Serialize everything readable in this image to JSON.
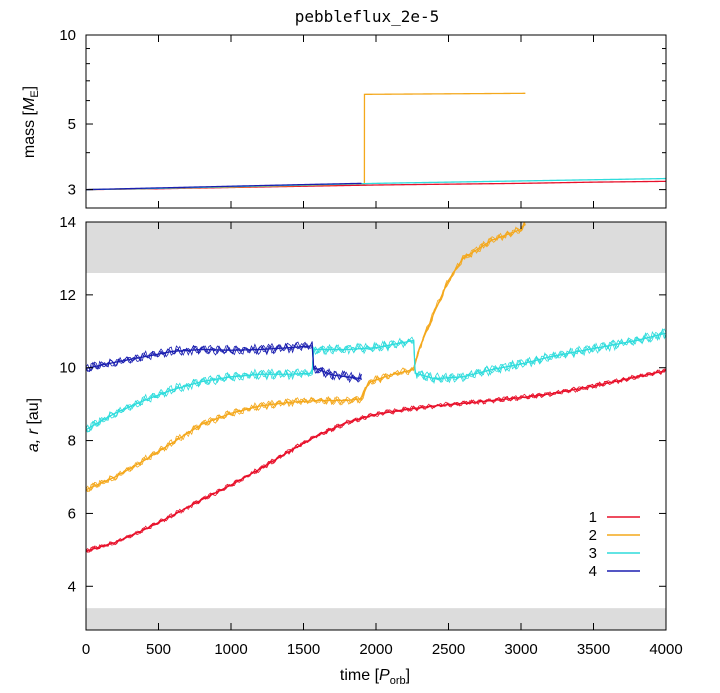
{
  "chart_data": [
    {
      "type": "line",
      "panel": "top",
      "title": "pebbleflux_2e-5",
      "ylabel": "mass [M_E]",
      "ylabel_parts": {
        "pre": "mass [",
        "main": "M",
        "sub": "E",
        "post": "]"
      },
      "xlim": [
        0,
        4000
      ],
      "ylim": [
        2.6,
        10
      ],
      "yscale": "log",
      "yticks": [
        3,
        5,
        10
      ],
      "ytick_labels": [
        "3",
        "5",
        "10"
      ],
      "grid": false,
      "series": [
        {
          "name": "1",
          "color": "#e8102a",
          "points": [
            [
              0,
              3.0
            ],
            [
              500,
              3.02
            ],
            [
              1000,
              3.05
            ],
            [
              1500,
              3.08
            ],
            [
              2000,
              3.11
            ],
            [
              2500,
              3.13
            ],
            [
              3000,
              3.15
            ],
            [
              3500,
              3.18
            ],
            [
              4000,
              3.2
            ]
          ]
        },
        {
          "name": "2",
          "color": "#f4a81c",
          "points": [
            [
              0,
              3.0
            ],
            [
              500,
              3.03
            ],
            [
              1000,
              3.06
            ],
            [
              1500,
              3.1
            ],
            [
              1920,
              3.14
            ],
            [
              1920.5,
              6.3
            ],
            [
              3030,
              6.35
            ]
          ]
        },
        {
          "name": "3",
          "color": "#2edcdc",
          "points": [
            [
              0,
              3.0
            ],
            [
              500,
              3.03
            ],
            [
              1000,
              3.07
            ],
            [
              1500,
              3.11
            ],
            [
              2000,
              3.15
            ],
            [
              2500,
              3.18
            ],
            [
              3000,
              3.21
            ],
            [
              3500,
              3.24
            ],
            [
              4000,
              3.27
            ]
          ]
        },
        {
          "name": "4",
          "color": "#1b1fb0",
          "points": [
            [
              0,
              3.0
            ],
            [
              500,
              3.04
            ],
            [
              1000,
              3.08
            ],
            [
              1500,
              3.12
            ],
            [
              1900,
              3.15
            ]
          ]
        }
      ]
    },
    {
      "type": "line",
      "panel": "bottom",
      "xlabel": "time [P_orb]",
      "xlabel_parts": {
        "pre": "time [",
        "main": "P",
        "sub": "orb",
        "post": "]"
      },
      "ylabel": "a, r [au]",
      "ylabel_parts": {
        "main": "a, r",
        "post": " [au]"
      },
      "xlim": [
        0,
        4000
      ],
      "ylim": [
        2.8,
        14
      ],
      "xticks": [
        0,
        500,
        1000,
        1500,
        2000,
        2500,
        3000,
        3500,
        4000
      ],
      "yticks": [
        4,
        6,
        8,
        10,
        12,
        14
      ],
      "grid": false,
      "shaded_bands": [
        {
          "y0": 12.6,
          "y1": 14.0,
          "color": "#dcdcdc"
        },
        {
          "y0": 2.8,
          "y1": 3.4,
          "color": "#dcdcdc"
        }
      ],
      "legend_position": "bottom-right",
      "series": [
        {
          "name": "1",
          "color": "#e8102a",
          "band": 0.08,
          "points": [
            [
              0,
              4.97
            ],
            [
              200,
              5.2
            ],
            [
              400,
              5.55
            ],
            [
              600,
              5.95
            ],
            [
              800,
              6.38
            ],
            [
              1000,
              6.78
            ],
            [
              1200,
              7.22
            ],
            [
              1400,
              7.7
            ],
            [
              1600,
              8.15
            ],
            [
              1800,
              8.5
            ],
            [
              2000,
              8.72
            ],
            [
              2200,
              8.85
            ],
            [
              2400,
              8.95
            ],
            [
              2600,
              9.02
            ],
            [
              2800,
              9.1
            ],
            [
              3000,
              9.18
            ],
            [
              3200,
              9.28
            ],
            [
              3400,
              9.42
            ],
            [
              3600,
              9.58
            ],
            [
              3800,
              9.75
            ],
            [
              4000,
              9.92
            ]
          ]
        },
        {
          "name": "2",
          "color": "#f4a81c",
          "band": 0.12,
          "points": [
            [
              0,
              6.65
            ],
            [
              200,
              7.0
            ],
            [
              400,
              7.45
            ],
            [
              600,
              7.95
            ],
            [
              800,
              8.45
            ],
            [
              1000,
              8.75
            ],
            [
              1200,
              8.95
            ],
            [
              1400,
              9.05
            ],
            [
              1600,
              9.1
            ],
            [
              1800,
              9.1
            ],
            [
              1900,
              9.15
            ],
            [
              1950,
              9.6
            ],
            [
              2100,
              9.8
            ],
            [
              2260,
              9.95
            ],
            [
              2300,
              10.55
            ],
            [
              2400,
              11.5
            ],
            [
              2500,
              12.4
            ],
            [
              2600,
              13.0
            ],
            [
              2800,
              13.5
            ],
            [
              3000,
              13.8
            ],
            [
              3030,
              13.95
            ]
          ]
        },
        {
          "name": "3",
          "color": "#2edcdc",
          "band": 0.15,
          "points": [
            [
              0,
              8.3
            ],
            [
              200,
              8.75
            ],
            [
              400,
              9.1
            ],
            [
              600,
              9.4
            ],
            [
              800,
              9.62
            ],
            [
              1000,
              9.75
            ],
            [
              1200,
              9.82
            ],
            [
              1400,
              9.82
            ],
            [
              1560,
              9.85
            ],
            [
              1570,
              10.5
            ],
            [
              1800,
              10.5
            ],
            [
              2000,
              10.55
            ],
            [
              2200,
              10.7
            ],
            [
              2260,
              10.75
            ],
            [
              2270,
              9.85
            ],
            [
              2400,
              9.7
            ],
            [
              2600,
              9.75
            ],
            [
              2800,
              9.95
            ],
            [
              3000,
              10.1
            ],
            [
              3200,
              10.3
            ],
            [
              3400,
              10.45
            ],
            [
              3600,
              10.6
            ],
            [
              3800,
              10.75
            ],
            [
              4000,
              10.95
            ]
          ]
        },
        {
          "name": "4",
          "color": "#1b1fb0",
          "band": 0.15,
          "points": [
            [
              0,
              9.98
            ],
            [
              200,
              10.15
            ],
            [
              400,
              10.3
            ],
            [
              600,
              10.45
            ],
            [
              800,
              10.5
            ],
            [
              1000,
              10.48
            ],
            [
              1200,
              10.5
            ],
            [
              1400,
              10.55
            ],
            [
              1560,
              10.6
            ],
            [
              1570,
              10.0
            ],
            [
              1700,
              9.8
            ],
            [
              1900,
              9.7
            ]
          ]
        }
      ]
    }
  ]
}
